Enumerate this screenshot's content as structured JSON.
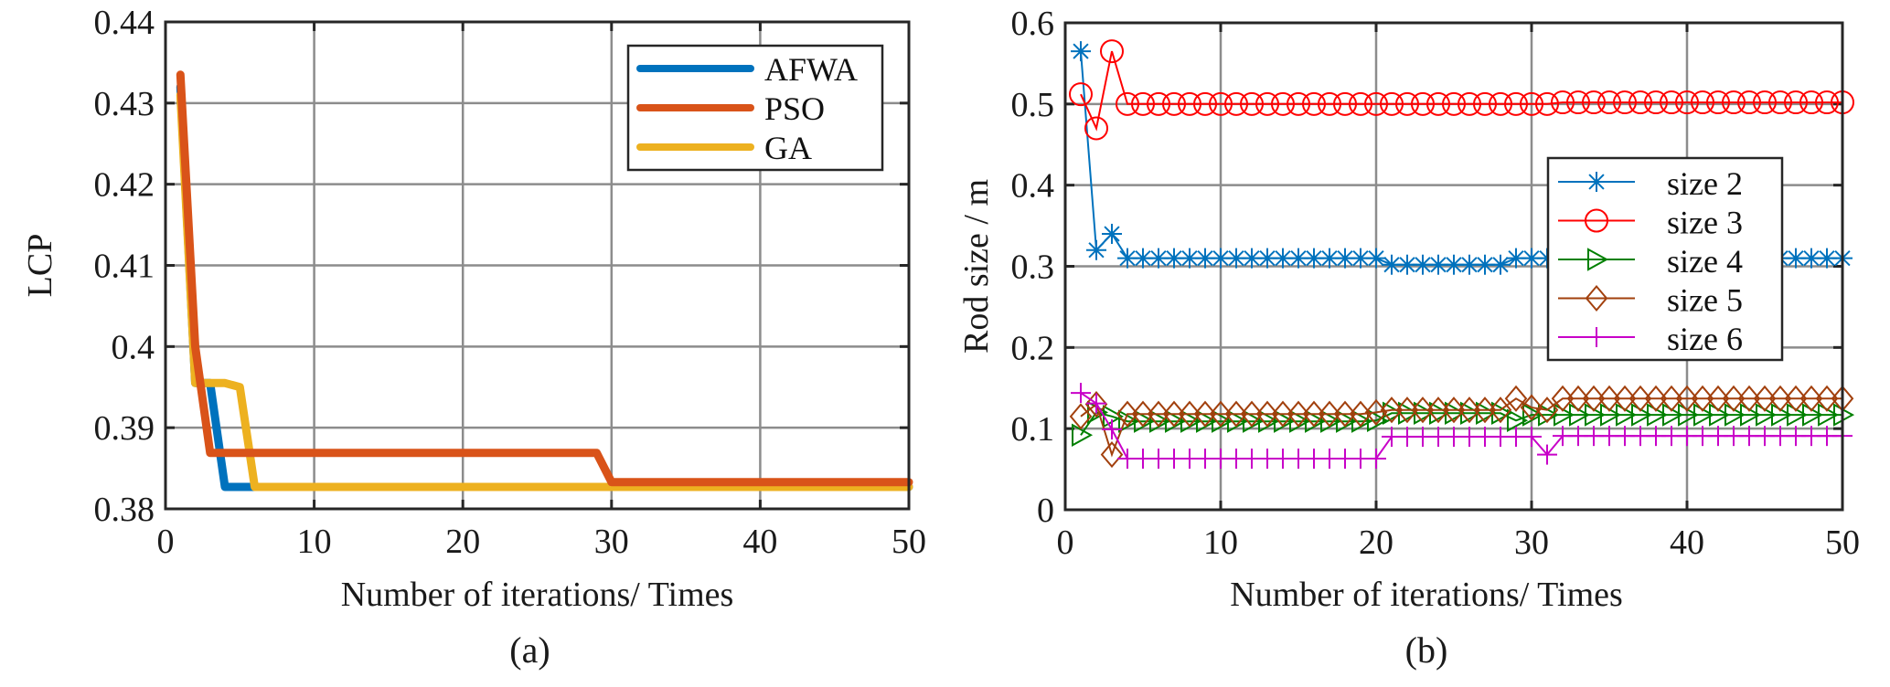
{
  "chart_data": [
    {
      "type": "line",
      "panel_label": "(a)",
      "title": "",
      "xlabel": "Number of iterations/ Times",
      "ylabel": "LCP",
      "xlim": [
        0,
        50
      ],
      "ylim": [
        0.38,
        0.44
      ],
      "xticks": [
        0,
        10,
        20,
        30,
        40,
        50
      ],
      "xtick_labels": [
        "0",
        "10",
        "20",
        "30",
        "40",
        "50"
      ],
      "yticks": [
        0.38,
        0.39,
        0.4,
        0.41,
        0.42,
        0.43,
        0.44
      ],
      "ytick_labels": [
        "0.38",
        "0.39",
        "0.4",
        "0.41",
        "0.42",
        "0.43",
        "0.44"
      ],
      "grid": true,
      "legend_position": "top-right",
      "series": [
        {
          "name": "AFWA",
          "color": "#0072BD",
          "x": [
            1,
            2,
            3,
            4,
            50
          ],
          "y": [
            0.432,
            0.3955,
            0.3955,
            0.3827,
            0.3827
          ]
        },
        {
          "name": "PSO",
          "color": "#D95319",
          "x": [
            1,
            2,
            3,
            29,
            30,
            50
          ],
          "y": [
            0.4335,
            0.4,
            0.3869,
            0.3869,
            0.3833,
            0.3833
          ]
        },
        {
          "name": "GA",
          "color": "#EDB120",
          "x": [
            1,
            2,
            4,
            5,
            6,
            50
          ],
          "y": [
            0.431,
            0.3955,
            0.3955,
            0.395,
            0.3827,
            0.3827
          ]
        }
      ]
    },
    {
      "type": "line",
      "panel_label": "(b)",
      "title": "",
      "xlabel": "Number of iterations/ Times",
      "ylabel": "Rod size / m",
      "xlim": [
        0,
        50
      ],
      "ylim": [
        0,
        0.6
      ],
      "xticks": [
        0,
        10,
        20,
        30,
        40,
        50
      ],
      "xtick_labels": [
        "0",
        "10",
        "20",
        "30",
        "40",
        "50"
      ],
      "yticks": [
        0,
        0.1,
        0.2,
        0.3,
        0.4,
        0.5,
        0.6
      ],
      "ytick_labels": [
        "0",
        "0.1",
        "0.2",
        "0.3",
        "0.4",
        "0.5",
        "0.6"
      ],
      "grid": true,
      "legend_position": "right",
      "x": [
        1,
        2,
        3,
        4,
        5,
        6,
        7,
        8,
        9,
        10,
        11,
        12,
        13,
        14,
        15,
        16,
        17,
        18,
        19,
        20,
        21,
        22,
        23,
        24,
        25,
        26,
        27,
        28,
        29,
        30,
        31,
        32,
        33,
        34,
        35,
        36,
        37,
        38,
        39,
        40,
        41,
        42,
        43,
        44,
        45,
        46,
        47,
        48,
        49,
        50
      ],
      "series": [
        {
          "name": "size 2",
          "color": "#0072BD",
          "marker": "asterisk",
          "values": [
            0.565,
            0.32,
            0.34,
            0.31,
            0.31,
            0.31,
            0.31,
            0.31,
            0.31,
            0.31,
            0.31,
            0.31,
            0.31,
            0.31,
            0.31,
            0.31,
            0.31,
            0.31,
            0.31,
            0.31,
            0.302,
            0.302,
            0.302,
            0.302,
            0.302,
            0.302,
            0.302,
            0.302,
            0.31,
            0.31,
            0.31,
            0.31,
            0.31,
            0.31,
            0.31,
            0.31,
            0.31,
            0.31,
            0.31,
            0.31,
            0.31,
            0.31,
            0.31,
            0.31,
            0.31,
            0.31,
            0.31,
            0.31,
            0.31,
            0.31
          ]
        },
        {
          "name": "size 3",
          "color": "#FF0000",
          "marker": "circle",
          "values": [
            0.512,
            0.47,
            0.565,
            0.5,
            0.5,
            0.5,
            0.5,
            0.5,
            0.5,
            0.5,
            0.5,
            0.5,
            0.5,
            0.5,
            0.5,
            0.5,
            0.5,
            0.5,
            0.5,
            0.5,
            0.5,
            0.5,
            0.5,
            0.5,
            0.5,
            0.5,
            0.5,
            0.5,
            0.5,
            0.5,
            0.5,
            0.502,
            0.502,
            0.502,
            0.502,
            0.502,
            0.502,
            0.502,
            0.502,
            0.502,
            0.502,
            0.502,
            0.502,
            0.502,
            0.502,
            0.502,
            0.502,
            0.502,
            0.502,
            0.502
          ]
        },
        {
          "name": "size 4",
          "color": "#008000",
          "marker": "triangle-right",
          "values": [
            0.092,
            0.12,
            0.115,
            0.109,
            0.109,
            0.109,
            0.109,
            0.109,
            0.109,
            0.109,
            0.109,
            0.109,
            0.109,
            0.109,
            0.109,
            0.109,
            0.109,
            0.109,
            0.109,
            0.11,
            0.119,
            0.119,
            0.119,
            0.119,
            0.119,
            0.119,
            0.119,
            0.119,
            0.11,
            0.117,
            0.117,
            0.117,
            0.117,
            0.117,
            0.117,
            0.117,
            0.117,
            0.117,
            0.117,
            0.117,
            0.117,
            0.117,
            0.117,
            0.117,
            0.117,
            0.117,
            0.117,
            0.117,
            0.117,
            0.117
          ]
        },
        {
          "name": "size 5",
          "color": "#A2400D",
          "marker": "diamond",
          "values": [
            0.115,
            0.13,
            0.068,
            0.118,
            0.118,
            0.118,
            0.118,
            0.118,
            0.118,
            0.118,
            0.118,
            0.118,
            0.118,
            0.118,
            0.118,
            0.118,
            0.118,
            0.118,
            0.118,
            0.12,
            0.123,
            0.123,
            0.123,
            0.123,
            0.123,
            0.123,
            0.123,
            0.123,
            0.137,
            0.126,
            0.123,
            0.137,
            0.137,
            0.137,
            0.137,
            0.137,
            0.137,
            0.137,
            0.137,
            0.137,
            0.137,
            0.137,
            0.137,
            0.137,
            0.137,
            0.137,
            0.137,
            0.137,
            0.137,
            0.137
          ]
        },
        {
          "name": "size 6",
          "color": "#C800C8",
          "marker": "plus",
          "values": [
            0.144,
            0.131,
            0.099,
            0.063,
            0.063,
            0.063,
            0.063,
            0.063,
            0.063,
            0.063,
            0.063,
            0.063,
            0.063,
            0.063,
            0.063,
            0.063,
            0.063,
            0.063,
            0.063,
            0.063,
            0.09,
            0.09,
            0.09,
            0.09,
            0.09,
            0.09,
            0.09,
            0.09,
            0.09,
            0.09,
            0.068,
            0.091,
            0.091,
            0.091,
            0.091,
            0.091,
            0.091,
            0.091,
            0.091,
            0.091,
            0.091,
            0.091,
            0.091,
            0.091,
            0.091,
            0.091,
            0.091,
            0.091,
            0.091,
            0.091
          ]
        }
      ]
    }
  ]
}
